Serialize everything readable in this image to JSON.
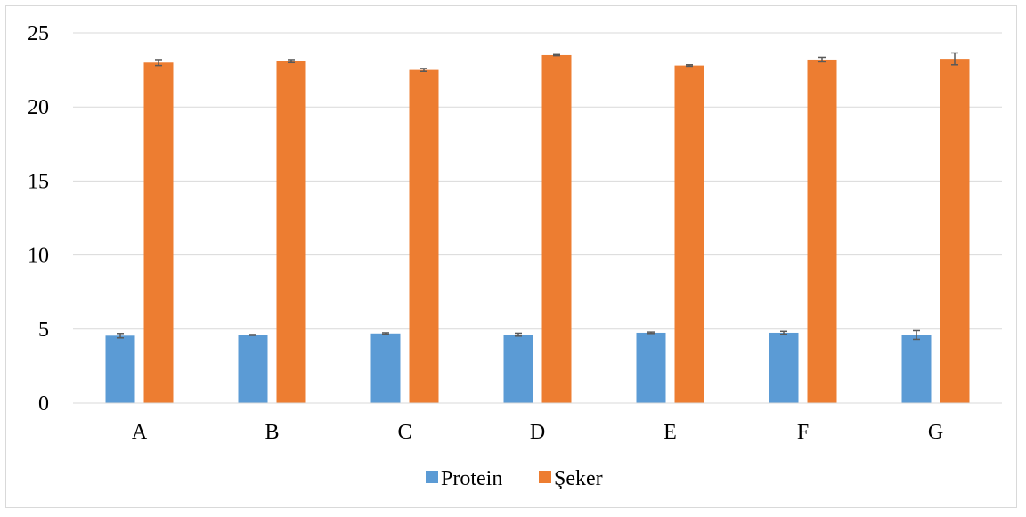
{
  "chart_data": {
    "type": "bar",
    "categories": [
      "A",
      "B",
      "C",
      "D",
      "E",
      "F",
      "G"
    ],
    "series": [
      {
        "name": "Protein",
        "color": "#5b9bd5",
        "values": [
          4.55,
          4.6,
          4.7,
          4.62,
          4.75,
          4.75,
          4.6
        ],
        "errors": [
          0.15,
          0.03,
          0.05,
          0.1,
          0.05,
          0.1,
          0.3
        ]
      },
      {
        "name": "Şeker",
        "color": "#ed7d31",
        "values": [
          23.0,
          23.1,
          22.5,
          23.5,
          22.8,
          23.2,
          23.25
        ],
        "errors": [
          0.2,
          0.1,
          0.1,
          0.04,
          0.05,
          0.15,
          0.4
        ]
      }
    ],
    "ylim": [
      0,
      25
    ],
    "yticks": [
      0,
      5,
      10,
      15,
      20,
      25
    ],
    "grid": true,
    "legend_position": "bottom",
    "title": "",
    "xlabel": "",
    "ylabel": ""
  }
}
